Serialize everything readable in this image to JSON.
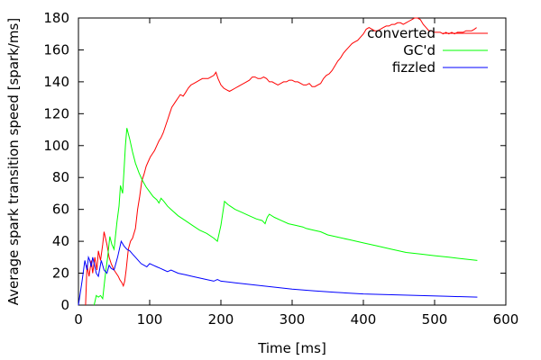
{
  "chart_data": {
    "type": "line",
    "xlabel": "Time [ms]",
    "ylabel": "Average spark transition speed [spark/ms]",
    "xlim": [
      0,
      600
    ],
    "ylim": [
      0,
      180
    ],
    "x_ticks": [
      0,
      100,
      200,
      300,
      400,
      500,
      600
    ],
    "y_ticks": [
      0,
      20,
      40,
      60,
      80,
      100,
      120,
      140,
      160,
      180
    ],
    "grid": false,
    "legend_position": "top-right",
    "series": [
      {
        "name": "converted",
        "color": "#ff0000",
        "points": [
          [
            10,
            0
          ],
          [
            12,
            25
          ],
          [
            15,
            18
          ],
          [
            18,
            28
          ],
          [
            20,
            20
          ],
          [
            23,
            30
          ],
          [
            26,
            22
          ],
          [
            28,
            34
          ],
          [
            31,
            28
          ],
          [
            34,
            38
          ],
          [
            36,
            46
          ],
          [
            40,
            38
          ],
          [
            43,
            30
          ],
          [
            46,
            26
          ],
          [
            50,
            22
          ],
          [
            53,
            20
          ],
          [
            56,
            18
          ],
          [
            58,
            16
          ],
          [
            61,
            14
          ],
          [
            63,
            12
          ],
          [
            65,
            15
          ],
          [
            67,
            22
          ],
          [
            70,
            35
          ],
          [
            73,
            40
          ],
          [
            76,
            42
          ],
          [
            80,
            48
          ],
          [
            83,
            60
          ],
          [
            86,
            68
          ],
          [
            89,
            78
          ],
          [
            92,
            82
          ],
          [
            95,
            87
          ],
          [
            98,
            90
          ],
          [
            101,
            93
          ],
          [
            104,
            95
          ],
          [
            107,
            97
          ],
          [
            110,
            100
          ],
          [
            113,
            103
          ],
          [
            116,
            105
          ],
          [
            119,
            108
          ],
          [
            122,
            112
          ],
          [
            125,
            116
          ],
          [
            128,
            120
          ],
          [
            131,
            124
          ],
          [
            134,
            126
          ],
          [
            137,
            128
          ],
          [
            140,
            130
          ],
          [
            143,
            132
          ],
          [
            147,
            131
          ],
          [
            150,
            133
          ],
          [
            154,
            136
          ],
          [
            158,
            138
          ],
          [
            162,
            139
          ],
          [
            166,
            140
          ],
          [
            170,
            141
          ],
          [
            174,
            142
          ],
          [
            178,
            142
          ],
          [
            182,
            142
          ],
          [
            186,
            143
          ],
          [
            190,
            144
          ],
          [
            193,
            146
          ],
          [
            196,
            142
          ],
          [
            200,
            138
          ],
          [
            204,
            136
          ],
          [
            208,
            135
          ],
          [
            212,
            134
          ],
          [
            216,
            135
          ],
          [
            220,
            136
          ],
          [
            224,
            137
          ],
          [
            228,
            138
          ],
          [
            232,
            139
          ],
          [
            236,
            140
          ],
          [
            240,
            141
          ],
          [
            244,
            143
          ],
          [
            248,
            143
          ],
          [
            252,
            142
          ],
          [
            256,
            142
          ],
          [
            260,
            143
          ],
          [
            264,
            142
          ],
          [
            268,
            140
          ],
          [
            272,
            140
          ],
          [
            276,
            139
          ],
          [
            280,
            138
          ],
          [
            284,
            139
          ],
          [
            288,
            140
          ],
          [
            292,
            140
          ],
          [
            296,
            141
          ],
          [
            300,
            141
          ],
          [
            304,
            140
          ],
          [
            308,
            140
          ],
          [
            312,
            139
          ],
          [
            316,
            138
          ],
          [
            320,
            138
          ],
          [
            324,
            139
          ],
          [
            328,
            137
          ],
          [
            332,
            137
          ],
          [
            336,
            138
          ],
          [
            340,
            139
          ],
          [
            344,
            142
          ],
          [
            348,
            144
          ],
          [
            352,
            145
          ],
          [
            356,
            147
          ],
          [
            360,
            150
          ],
          [
            364,
            153
          ],
          [
            368,
            155
          ],
          [
            372,
            158
          ],
          [
            376,
            160
          ],
          [
            380,
            162
          ],
          [
            384,
            164
          ],
          [
            388,
            165
          ],
          [
            392,
            166
          ],
          [
            396,
            168
          ],
          [
            400,
            170
          ],
          [
            404,
            173
          ],
          [
            408,
            174
          ],
          [
            412,
            173
          ],
          [
            416,
            172
          ],
          [
            420,
            172
          ],
          [
            424,
            173
          ],
          [
            428,
            174
          ],
          [
            432,
            175
          ],
          [
            436,
            175
          ],
          [
            440,
            176
          ],
          [
            444,
            176
          ],
          [
            448,
            177
          ],
          [
            452,
            177
          ],
          [
            456,
            176
          ],
          [
            460,
            177
          ],
          [
            464,
            178
          ],
          [
            468,
            179
          ],
          [
            472,
            180
          ],
          [
            476,
            180
          ],
          [
            480,
            179
          ],
          [
            484,
            176
          ],
          [
            488,
            174
          ],
          [
            492,
            172
          ],
          [
            496,
            172
          ],
          [
            500,
            171
          ],
          [
            504,
            171
          ],
          [
            508,
            171
          ],
          [
            512,
            170
          ],
          [
            516,
            171
          ],
          [
            520,
            170
          ],
          [
            524,
            171
          ],
          [
            528,
            170
          ],
          [
            532,
            171
          ],
          [
            536,
            171
          ],
          [
            540,
            171
          ],
          [
            544,
            172
          ],
          [
            548,
            172
          ],
          [
            552,
            172
          ],
          [
            556,
            173
          ],
          [
            559,
            174
          ]
        ]
      },
      {
        "name": "GC'd",
        "color": "#00ff00",
        "points": [
          [
            22,
            0
          ],
          [
            25,
            6
          ],
          [
            28,
            5
          ],
          [
            31,
            6
          ],
          [
            34,
            4
          ],
          [
            38,
            20
          ],
          [
            41,
            30
          ],
          [
            44,
            43
          ],
          [
            47,
            38
          ],
          [
            50,
            35
          ],
          [
            54,
            52
          ],
          [
            57,
            62
          ],
          [
            59,
            75
          ],
          [
            62,
            70
          ],
          [
            64,
            85
          ],
          [
            66,
            100
          ],
          [
            68,
            111
          ],
          [
            72,
            104
          ],
          [
            76,
            96
          ],
          [
            80,
            89
          ],
          [
            85,
            83
          ],
          [
            90,
            78
          ],
          [
            95,
            74
          ],
          [
            100,
            71
          ],
          [
            105,
            68
          ],
          [
            110,
            66
          ],
          [
            113,
            64
          ],
          [
            116,
            67
          ],
          [
            120,
            65
          ],
          [
            125,
            62
          ],
          [
            130,
            60
          ],
          [
            140,
            56
          ],
          [
            150,
            53
          ],
          [
            160,
            50
          ],
          [
            170,
            47
          ],
          [
            180,
            45
          ],
          [
            190,
            42
          ],
          [
            195,
            40
          ],
          [
            200,
            50
          ],
          [
            205,
            65
          ],
          [
            210,
            63
          ],
          [
            220,
            60
          ],
          [
            230,
            58
          ],
          [
            240,
            56
          ],
          [
            250,
            54
          ],
          [
            258,
            53
          ],
          [
            262,
            51
          ],
          [
            265,
            55
          ],
          [
            268,
            57
          ],
          [
            275,
            55
          ],
          [
            285,
            53
          ],
          [
            295,
            51
          ],
          [
            305,
            50
          ],
          [
            315,
            49
          ],
          [
            320,
            48
          ],
          [
            330,
            47
          ],
          [
            340,
            46
          ],
          [
            350,
            44
          ],
          [
            360,
            43
          ],
          [
            380,
            41
          ],
          [
            400,
            39
          ],
          [
            420,
            37
          ],
          [
            440,
            35
          ],
          [
            460,
            33
          ],
          [
            480,
            32
          ],
          [
            500,
            31
          ],
          [
            520,
            30
          ],
          [
            540,
            29
          ],
          [
            560,
            28
          ]
        ]
      },
      {
        "name": "fizzled",
        "color": "#0000ff",
        "points": [
          [
            0,
            0
          ],
          [
            5,
            15
          ],
          [
            9,
            28
          ],
          [
            12,
            22
          ],
          [
            14,
            30
          ],
          [
            16,
            28
          ],
          [
            18,
            24
          ],
          [
            20,
            30
          ],
          [
            22,
            26
          ],
          [
            25,
            20
          ],
          [
            28,
            18
          ],
          [
            32,
            28
          ],
          [
            36,
            22
          ],
          [
            40,
            20
          ],
          [
            43,
            25
          ],
          [
            46,
            23
          ],
          [
            50,
            22
          ],
          [
            55,
            30
          ],
          [
            60,
            40
          ],
          [
            64,
            37
          ],
          [
            68,
            35
          ],
          [
            72,
            34
          ],
          [
            76,
            32
          ],
          [
            80,
            30
          ],
          [
            84,
            28
          ],
          [
            88,
            26
          ],
          [
            92,
            25
          ],
          [
            96,
            24
          ],
          [
            100,
            26
          ],
          [
            105,
            25
          ],
          [
            110,
            24
          ],
          [
            115,
            23
          ],
          [
            120,
            22
          ],
          [
            125,
            21
          ],
          [
            130,
            22
          ],
          [
            140,
            20
          ],
          [
            150,
            19
          ],
          [
            160,
            18
          ],
          [
            170,
            17
          ],
          [
            180,
            16
          ],
          [
            190,
            15
          ],
          [
            195,
            16
          ],
          [
            200,
            15
          ],
          [
            220,
            14
          ],
          [
            240,
            13
          ],
          [
            260,
            12
          ],
          [
            280,
            11
          ],
          [
            300,
            10
          ],
          [
            330,
            9
          ],
          [
            360,
            8
          ],
          [
            400,
            7
          ],
          [
            440,
            6.5
          ],
          [
            480,
            6
          ],
          [
            520,
            5.5
          ],
          [
            560,
            5
          ]
        ]
      }
    ]
  }
}
